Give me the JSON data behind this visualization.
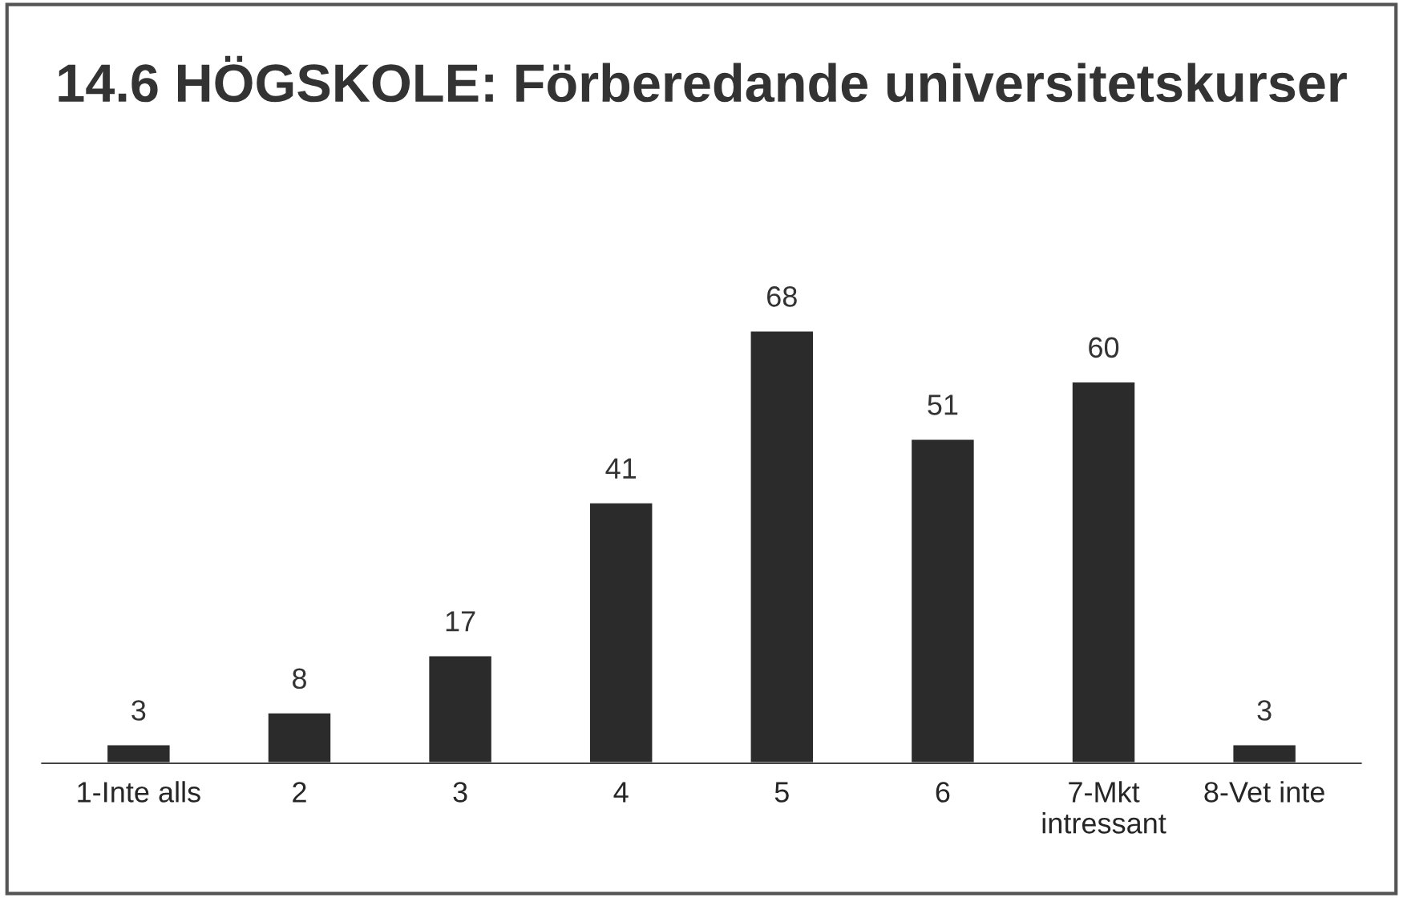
{
  "chart_data": {
    "type": "bar",
    "title": "14.6 HÖGSKOLE: Förberedande universitetskurser",
    "categories": [
      "1-Inte alls",
      "2",
      "3",
      "4",
      "5",
      "6",
      "7-Mkt intressant",
      "8-Vet inte"
    ],
    "values": [
      3,
      8,
      17,
      41,
      68,
      51,
      60,
      3
    ],
    "color": "#2b2b2b",
    "data_labels": true,
    "grid": false,
    "legend": false
  }
}
